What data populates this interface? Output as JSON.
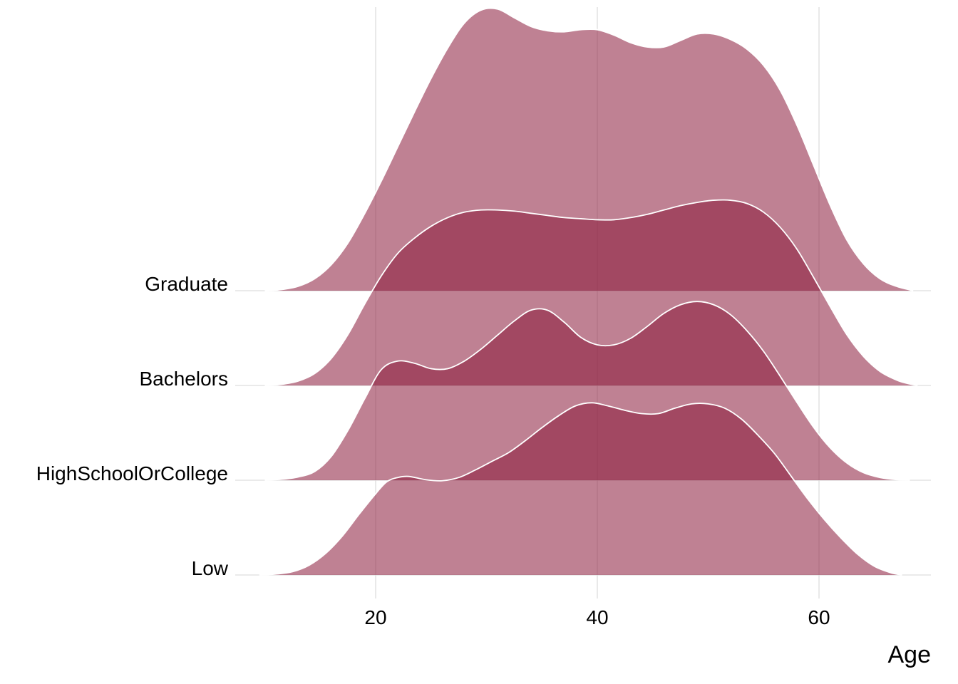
{
  "chart_data": {
    "type": "ridgeline",
    "xlabel": "Age",
    "ylabel": "",
    "title": "",
    "xlim": [
      7,
      70
    ],
    "x_ticks": [
      20,
      40,
      60
    ],
    "grid": "vertical major gridlines",
    "fill_color": "#8b1a3a",
    "fill_opacity": 0.55,
    "outline_color": "#ffffff",
    "categories": [
      "Graduate",
      "Bachelors",
      "HighSchoolOrCollege",
      "Low"
    ],
    "series": [
      {
        "name": "Low",
        "density": [
          [
            9.5,
            0
          ],
          [
            11,
            0.008
          ],
          [
            12.5,
            0.03
          ],
          [
            14,
            0.09
          ],
          [
            15.5,
            0.2
          ],
          [
            17,
            0.36
          ],
          [
            18.5,
            0.56
          ],
          [
            20,
            0.75
          ],
          [
            21,
            0.86
          ],
          [
            22,
            0.9
          ],
          [
            23,
            0.91
          ],
          [
            24.5,
            0.88
          ],
          [
            26,
            0.87
          ],
          [
            27.5,
            0.9
          ],
          [
            29,
            0.97
          ],
          [
            30.5,
            1.05
          ],
          [
            32,
            1.13
          ],
          [
            33.5,
            1.24
          ],
          [
            35,
            1.36
          ],
          [
            36.5,
            1.47
          ],
          [
            38,
            1.56
          ],
          [
            39.5,
            1.59
          ],
          [
            41,
            1.56
          ],
          [
            42.5,
            1.52
          ],
          [
            44,
            1.49
          ],
          [
            45.5,
            1.49
          ],
          [
            47,
            1.54
          ],
          [
            48.5,
            1.58
          ],
          [
            50,
            1.58
          ],
          [
            51.5,
            1.54
          ],
          [
            53,
            1.44
          ],
          [
            54.5,
            1.29
          ],
          [
            56,
            1.12
          ],
          [
            57.5,
            0.91
          ],
          [
            59,
            0.7
          ],
          [
            60.5,
            0.51
          ],
          [
            62,
            0.34
          ],
          [
            63.5,
            0.19
          ],
          [
            65,
            0.08
          ],
          [
            66.5,
            0.02
          ],
          [
            67.5,
            0
          ]
        ]
      },
      {
        "name": "HighSchoolOrCollege",
        "density": [
          [
            10,
            0
          ],
          [
            11.5,
            0.008
          ],
          [
            13,
            0.03
          ],
          [
            14.5,
            0.08
          ],
          [
            16,
            0.22
          ],
          [
            17.5,
            0.46
          ],
          [
            19,
            0.75
          ],
          [
            20.5,
            1.02
          ],
          [
            22,
            1.1
          ],
          [
            23.5,
            1.08
          ],
          [
            25,
            1.03
          ],
          [
            26.5,
            1.03
          ],
          [
            28,
            1.1
          ],
          [
            29.5,
            1.21
          ],
          [
            31,
            1.34
          ],
          [
            32.5,
            1.47
          ],
          [
            34,
            1.57
          ],
          [
            35.5,
            1.57
          ],
          [
            37,
            1.46
          ],
          [
            38.5,
            1.32
          ],
          [
            40,
            1.25
          ],
          [
            41.5,
            1.25
          ],
          [
            43,
            1.31
          ],
          [
            44.5,
            1.42
          ],
          [
            46,
            1.54
          ],
          [
            47.5,
            1.62
          ],
          [
            49,
            1.65
          ],
          [
            50.5,
            1.62
          ],
          [
            52,
            1.53
          ],
          [
            53.5,
            1.38
          ],
          [
            55,
            1.19
          ],
          [
            56.5,
            0.96
          ],
          [
            58,
            0.72
          ],
          [
            59.5,
            0.49
          ],
          [
            61,
            0.3
          ],
          [
            62.5,
            0.16
          ],
          [
            64,
            0.07
          ],
          [
            65.5,
            0.025
          ],
          [
            67,
            0.005
          ],
          [
            68.2,
            0
          ]
        ]
      },
      {
        "name": "Bachelors",
        "density": [
          [
            10,
            0
          ],
          [
            11.5,
            0.01
          ],
          [
            13,
            0.04
          ],
          [
            14.5,
            0.11
          ],
          [
            16,
            0.25
          ],
          [
            17.5,
            0.47
          ],
          [
            19,
            0.75
          ],
          [
            20.5,
            1.01
          ],
          [
            22,
            1.22
          ],
          [
            23.5,
            1.36
          ],
          [
            25,
            1.47
          ],
          [
            26.5,
            1.55
          ],
          [
            28,
            1.6
          ],
          [
            29.5,
            1.62
          ],
          [
            31,
            1.62
          ],
          [
            32.5,
            1.61
          ],
          [
            34,
            1.59
          ],
          [
            35.5,
            1.57
          ],
          [
            37,
            1.55
          ],
          [
            38.5,
            1.54
          ],
          [
            40,
            1.53
          ],
          [
            41.5,
            1.53
          ],
          [
            43,
            1.55
          ],
          [
            44.5,
            1.58
          ],
          [
            46,
            1.62
          ],
          [
            47.5,
            1.66
          ],
          [
            49,
            1.69
          ],
          [
            50.5,
            1.71
          ],
          [
            52,
            1.71
          ],
          [
            53.5,
            1.68
          ],
          [
            55,
            1.6
          ],
          [
            56.5,
            1.46
          ],
          [
            58,
            1.26
          ],
          [
            59.5,
            1.0
          ],
          [
            61,
            0.73
          ],
          [
            62.5,
            0.47
          ],
          [
            64,
            0.27
          ],
          [
            65.5,
            0.13
          ],
          [
            67,
            0.05
          ],
          [
            68,
            0.018
          ],
          [
            68.9,
            0
          ]
        ]
      },
      {
        "name": "Graduate",
        "density": [
          [
            10,
            0
          ],
          [
            11.5,
            0.01
          ],
          [
            13,
            0.04
          ],
          [
            14.5,
            0.11
          ],
          [
            16,
            0.24
          ],
          [
            17.5,
            0.44
          ],
          [
            19,
            0.71
          ],
          [
            20.5,
            1.01
          ],
          [
            22,
            1.33
          ],
          [
            23.5,
            1.65
          ],
          [
            25,
            1.96
          ],
          [
            26.5,
            2.24
          ],
          [
            28,
            2.47
          ],
          [
            29.5,
            2.59
          ],
          [
            31,
            2.6
          ],
          [
            32.5,
            2.52
          ],
          [
            34,
            2.44
          ],
          [
            35.5,
            2.4
          ],
          [
            37,
            2.39
          ],
          [
            38.5,
            2.41
          ],
          [
            40,
            2.41
          ],
          [
            41.5,
            2.36
          ],
          [
            43,
            2.29
          ],
          [
            44.5,
            2.25
          ],
          [
            46,
            2.25
          ],
          [
            47.5,
            2.31
          ],
          [
            49,
            2.37
          ],
          [
            50.5,
            2.37
          ],
          [
            52,
            2.32
          ],
          [
            53.5,
            2.23
          ],
          [
            55,
            2.08
          ],
          [
            56.5,
            1.85
          ],
          [
            58,
            1.53
          ],
          [
            59.5,
            1.16
          ],
          [
            61,
            0.79
          ],
          [
            62.5,
            0.47
          ],
          [
            64,
            0.25
          ],
          [
            65.5,
            0.11
          ],
          [
            67,
            0.04
          ],
          [
            68.5,
            0
          ]
        ]
      }
    ]
  }
}
